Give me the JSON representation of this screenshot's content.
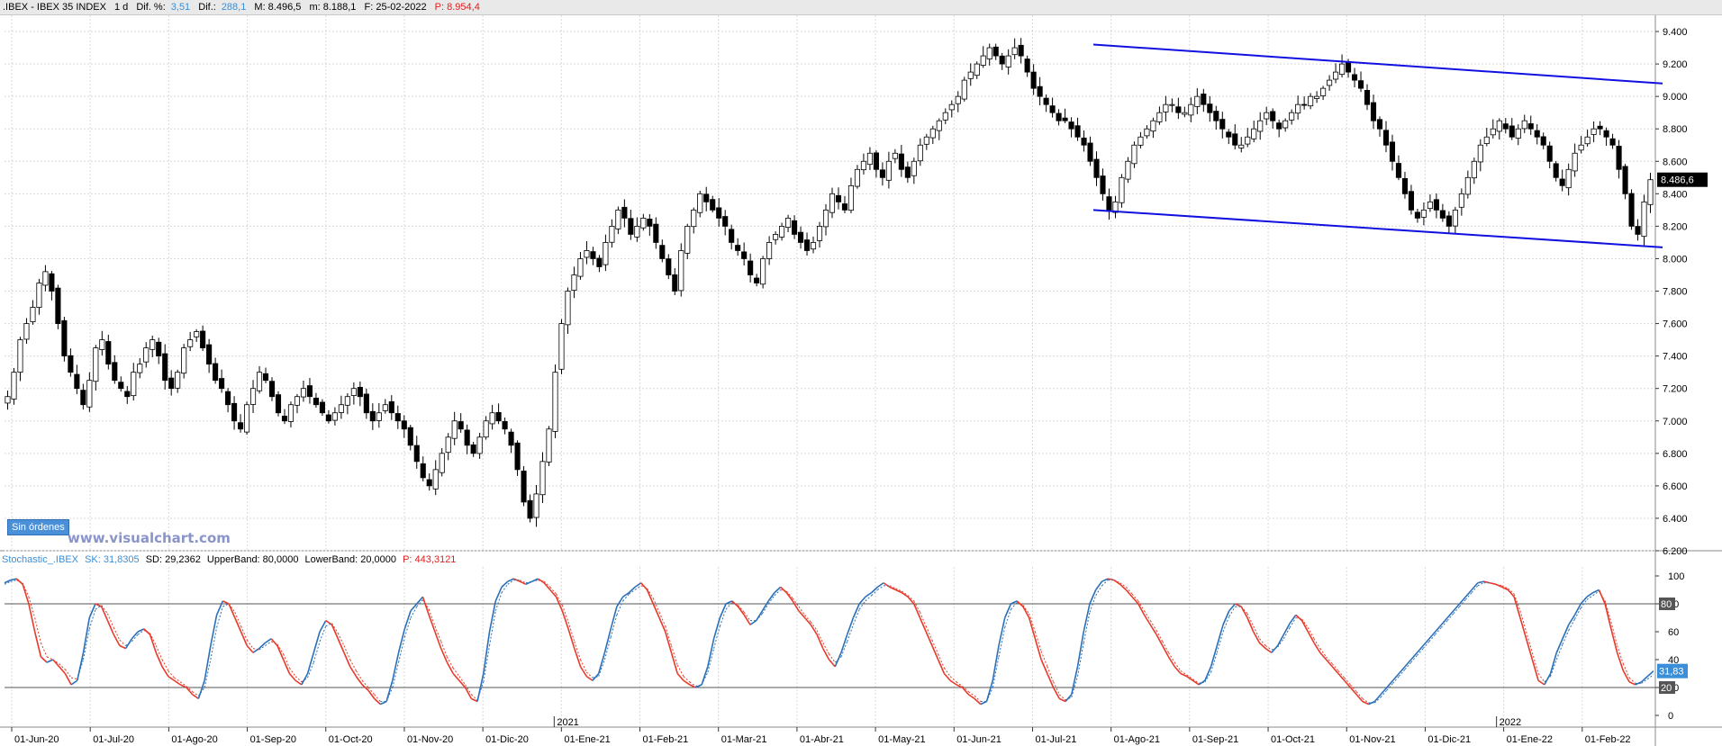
{
  "header": {
    "symbol": ".IBEX - IBEX 35 INDEX",
    "timeframe": "1 d",
    "dif_pct_label": "Dif. %:",
    "dif_pct_value": "3,51",
    "dif_label": "Dif.:",
    "dif_value": "288,1",
    "max": "M: 8.496,5",
    "min": "m: 8.188,1",
    "date": "F: 25-02-2022",
    "prev": "P: 8.954,4"
  },
  "stochastic_header": {
    "name": "Stochastic_.IBEX",
    "sk": "SK: 31,8305",
    "sd": "SD: 29,2362",
    "upper": "UpperBand: 80,0000",
    "lower": "LowerBand: 20,0000",
    "p": "P: 443,3121"
  },
  "orders_button": "Sin órdenes",
  "watermark": "www.visualchart.com",
  "colors": {
    "candle": "#000000",
    "channel": "#1010e0",
    "stoch_up": "#2a6fb8",
    "stoch_down": "#e83a2a",
    "grid": "#d9d9d9",
    "last_price_bg": "#000000",
    "stoch_value_bg": "#3a8fd8"
  },
  "chart_data": [
    {
      "type": "candlestick",
      "title": "IBEX 35 INDEX",
      "ylim": [
        6200,
        9500
      ],
      "y_ticks": [
        "9.400",
        "9.200",
        "9.000",
        "8.800",
        "8.600",
        "8.400",
        "8.200",
        "8.000",
        "7.800",
        "7.600",
        "7.400",
        "7.200",
        "7.000",
        "6.800",
        "6.600",
        "6.400",
        "6.200"
      ],
      "y_tick_values": [
        9400,
        9200,
        9000,
        8800,
        8600,
        8400,
        8200,
        8000,
        7800,
        7600,
        7400,
        7200,
        7000,
        6800,
        6600,
        6400,
        6200
      ],
      "last_price_label": "8.486,6",
      "last_price": 8486.6,
      "x_labels": [
        "01-Jun-20",
        "01-Jul-20",
        "01-Ago-20",
        "01-Sep-20",
        "01-Oct-20",
        "01-Nov-20",
        "01-Dic-20",
        "01-Ene-21",
        "01-Feb-21",
        "01-Mar-21",
        "01-Abr-21",
        "01-May-21",
        "01-Jun-21",
        "01-Jul-21",
        "01-Ago-21",
        "01-Sep-21",
        "01-Oct-21",
        "01-Nov-21",
        "01-Dic-21",
        "01-Ene-22",
        "01-Feb-22"
      ],
      "year_labels": [
        "2021",
        "2022"
      ],
      "closes": [
        7150,
        7300,
        7500,
        7600,
        7700,
        7850,
        7920,
        7800,
        7600,
        7400,
        7300,
        7200,
        7100,
        7250,
        7450,
        7500,
        7350,
        7250,
        7200,
        7150,
        7300,
        7350,
        7450,
        7500,
        7400,
        7250,
        7200,
        7300,
        7450,
        7500,
        7550,
        7450,
        7350,
        7250,
        7200,
        7100,
        7000,
        6950,
        7100,
        7200,
        7300,
        7250,
        7150,
        7050,
        7000,
        7100,
        7150,
        7200,
        7150,
        7100,
        7050,
        7000,
        7050,
        7100,
        7150,
        7200,
        7150,
        7050,
        7000,
        7050,
        7100,
        7050,
        7000,
        6950,
        6850,
        6750,
        6650,
        6600,
        6700,
        6800,
        6900,
        7000,
        6950,
        6850,
        6800,
        6900,
        7000,
        7050,
        7000,
        6950,
        6850,
        6700,
        6500,
        6400,
        6550,
        6750,
        6950,
        7300,
        7600,
        7800,
        7900,
        8000,
        8050,
        8000,
        7950,
        8100,
        8200,
        8300,
        8250,
        8150,
        8200,
        8250,
        8200,
        8100,
        8000,
        7900,
        7800,
        8050,
        8200,
        8300,
        8400,
        8350,
        8300,
        8250,
        8200,
        8100,
        8050,
        8000,
        7900,
        7850,
        8000,
        8100,
        8150,
        8200,
        8250,
        8150,
        8100,
        8050,
        8100,
        8200,
        8300,
        8400,
        8350,
        8300,
        8450,
        8550,
        8600,
        8650,
        8550,
        8500,
        8600,
        8650,
        8550,
        8500,
        8600,
        8700,
        8750,
        8800,
        8850,
        8900,
        8950,
        9000,
        9100,
        9150,
        9200,
        9250,
        9300,
        9250,
        9200,
        9250,
        9300,
        9250,
        9150,
        9050,
        9000,
        8950,
        8900,
        8850,
        8850,
        8800,
        8750,
        8700,
        8600,
        8500,
        8400,
        8300,
        8350,
        8500,
        8600,
        8700,
        8750,
        8800,
        8850,
        8900,
        8950,
        8950,
        8900,
        8900,
        8950,
        9000,
        8950,
        8900,
        8850,
        8800,
        8750,
        8700,
        8700,
        8750,
        8800,
        8850,
        8900,
        8850,
        8800,
        8850,
        8900,
        8950,
        8950,
        9000,
        9000,
        9050,
        9100,
        9150,
        9200,
        9150,
        9100,
        9050,
        8950,
        8850,
        8800,
        8700,
        8600,
        8500,
        8400,
        8300,
        8250,
        8300,
        8350,
        8300,
        8250,
        8200,
        8300,
        8400,
        8500,
        8600,
        8700,
        8750,
        8800,
        8850,
        8800,
        8750,
        8800,
        8850,
        8800,
        8750,
        8700,
        8600,
        8500,
        8450,
        8550,
        8650,
        8700,
        8750,
        8800,
        8800,
        8750,
        8700,
        8550,
        8400,
        8200,
        8150,
        8350,
        8486.6
      ]
    },
    {
      "type": "line",
      "title": "Stochastic_.IBEX",
      "ylim": [
        0,
        100
      ],
      "y_ticks": [
        "100",
        "80",
        "60",
        "40",
        "20",
        "0"
      ],
      "y_tick_values": [
        100,
        80,
        60,
        40,
        20,
        0
      ],
      "bands": [
        80,
        20
      ],
      "last_value_label": "31,83",
      "band_labels": [
        "80",
        "20"
      ],
      "series": [
        {
          "name": "SK",
          "values": [
            95,
            97,
            98,
            94,
            80,
            60,
            42,
            38,
            40,
            35,
            30,
            22,
            25,
            45,
            70,
            80,
            78,
            68,
            58,
            50,
            48,
            55,
            60,
            62,
            58,
            45,
            35,
            28,
            25,
            22,
            20,
            15,
            12,
            25,
            50,
            72,
            82,
            80,
            70,
            60,
            50,
            45,
            48,
            52,
            55,
            50,
            40,
            30,
            25,
            22,
            30,
            45,
            60,
            68,
            65,
            55,
            45,
            35,
            28,
            22,
            18,
            12,
            8,
            10,
            25,
            45,
            62,
            75,
            80,
            85,
            72,
            60,
            48,
            38,
            30,
            25,
            20,
            12,
            10,
            30,
            60,
            82,
            92,
            96,
            98,
            96,
            94,
            96,
            98,
            95,
            90,
            85,
            75,
            62,
            48,
            35,
            28,
            25,
            30,
            45,
            62,
            78,
            85,
            88,
            92,
            95,
            90,
            80,
            70,
            60,
            45,
            30,
            25,
            22,
            20,
            22,
            35,
            55,
            70,
            80,
            82,
            78,
            72,
            65,
            68,
            75,
            82,
            88,
            92,
            88,
            82,
            75,
            70,
            65,
            58,
            48,
            40,
            35,
            45,
            58,
            70,
            80,
            85,
            88,
            92,
            95,
            92,
            90,
            88,
            85,
            80,
            70,
            60,
            50,
            40,
            30,
            25,
            22,
            20,
            15,
            12,
            8,
            10,
            25,
            50,
            70,
            80,
            82,
            78,
            70,
            55,
            40,
            30,
            20,
            12,
            10,
            15,
            35,
            60,
            80,
            90,
            96,
            98,
            97,
            94,
            90,
            85,
            80,
            72,
            65,
            58,
            50,
            42,
            35,
            30,
            28,
            25,
            22,
            25,
            35,
            50,
            65,
            75,
            80,
            78,
            70,
            60,
            52,
            48,
            45,
            50,
            58,
            66,
            72,
            68,
            60,
            52,
            45,
            40,
            35,
            30,
            25,
            20,
            15,
            10,
            8,
            10,
            15,
            20,
            25,
            30,
            35,
            40,
            45,
            50,
            55,
            60,
            65,
            70,
            75,
            80,
            85,
            90,
            95,
            96,
            95,
            94,
            92,
            90,
            85,
            70,
            55,
            40,
            25,
            22,
            30,
            45,
            55,
            65,
            72,
            80,
            85,
            88,
            90,
            80,
            62,
            45,
            32,
            24,
            22,
            24,
            28,
            31.83
          ]
        },
        {
          "name": "SD",
          "values": [
            94,
            96,
            97,
            95,
            85,
            70,
            52,
            42,
            40,
            37,
            33,
            27,
            26,
            40,
            62,
            76,
            79,
            73,
            63,
            54,
            50,
            53,
            58,
            61,
            59,
            50,
            40,
            32,
            27,
            24,
            21,
            17,
            14,
            20,
            40,
            63,
            78,
            80,
            74,
            64,
            54,
            48,
            47,
            50,
            53,
            51,
            44,
            34,
            28,
            24,
            27,
            38,
            53,
            64,
            66,
            59,
            50,
            40,
            32,
            25,
            20,
            15,
            10,
            10,
            20,
            38,
            56,
            70,
            78,
            83,
            76,
            64,
            53,
            42,
            34,
            28,
            22,
            15,
            11,
            24,
            50,
            75,
            88,
            94,
            97,
            97,
            95,
            96,
            97,
            96,
            92,
            87,
            79,
            67,
            53,
            40,
            31,
            27,
            28,
            40,
            56,
            72,
            82,
            87,
            90,
            93,
            91,
            84,
            74,
            64,
            50,
            36,
            28,
            24,
            21,
            22,
            31,
            48,
            64,
            76,
            81,
            79,
            74,
            68,
            68,
            73,
            80,
            86,
            90,
            89,
            84,
            78,
            72,
            67,
            61,
            52,
            44,
            38,
            42,
            53,
            65,
            76,
            82,
            86,
            90,
            93,
            93,
            91,
            89,
            86,
            82,
            74,
            64,
            54,
            44,
            34,
            28,
            24,
            21,
            17,
            14,
            10,
            10,
            20,
            42,
            63,
            76,
            81,
            79,
            73,
            60,
            46,
            35,
            24,
            15,
            11,
            13,
            28,
            52,
            74,
            86,
            93,
            97,
            97,
            95,
            92,
            87,
            82,
            75,
            68,
            61,
            53,
            45,
            38,
            32,
            29,
            26,
            23,
            24,
            31,
            45,
            60,
            71,
            78,
            78,
            73,
            64,
            55,
            50,
            47,
            49,
            55,
            63,
            70,
            69,
            63,
            55,
            48,
            42,
            37,
            32,
            27,
            22,
            17,
            12,
            9,
            9,
            13,
            18,
            23,
            28,
            33,
            38,
            43,
            48,
            53,
            58,
            63,
            68,
            73,
            78,
            83,
            88,
            93,
            95,
            95,
            94,
            93,
            91,
            87,
            75,
            60,
            45,
            30,
            24,
            28,
            40,
            51,
            61,
            69,
            77,
            83,
            86,
            89,
            82,
            67,
            50,
            37,
            27,
            23,
            23,
            26,
            29.24
          ]
        }
      ]
    }
  ]
}
